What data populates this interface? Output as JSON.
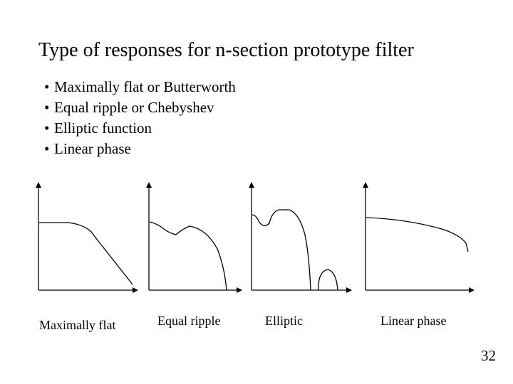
{
  "title": "Type of responses for n-section prototype filter",
  "bullets": [
    "Maximally flat or Butterworth",
    "Equal ripple or Chebyshev",
    "Elliptic function",
    "Linear phase"
  ],
  "panels": [
    {
      "caption": "Maximally flat"
    },
    {
      "caption": "Equal ripple"
    },
    {
      "caption": "Elliptic"
    },
    {
      "caption": "Linear phase"
    }
  ],
  "page_number": "32"
}
